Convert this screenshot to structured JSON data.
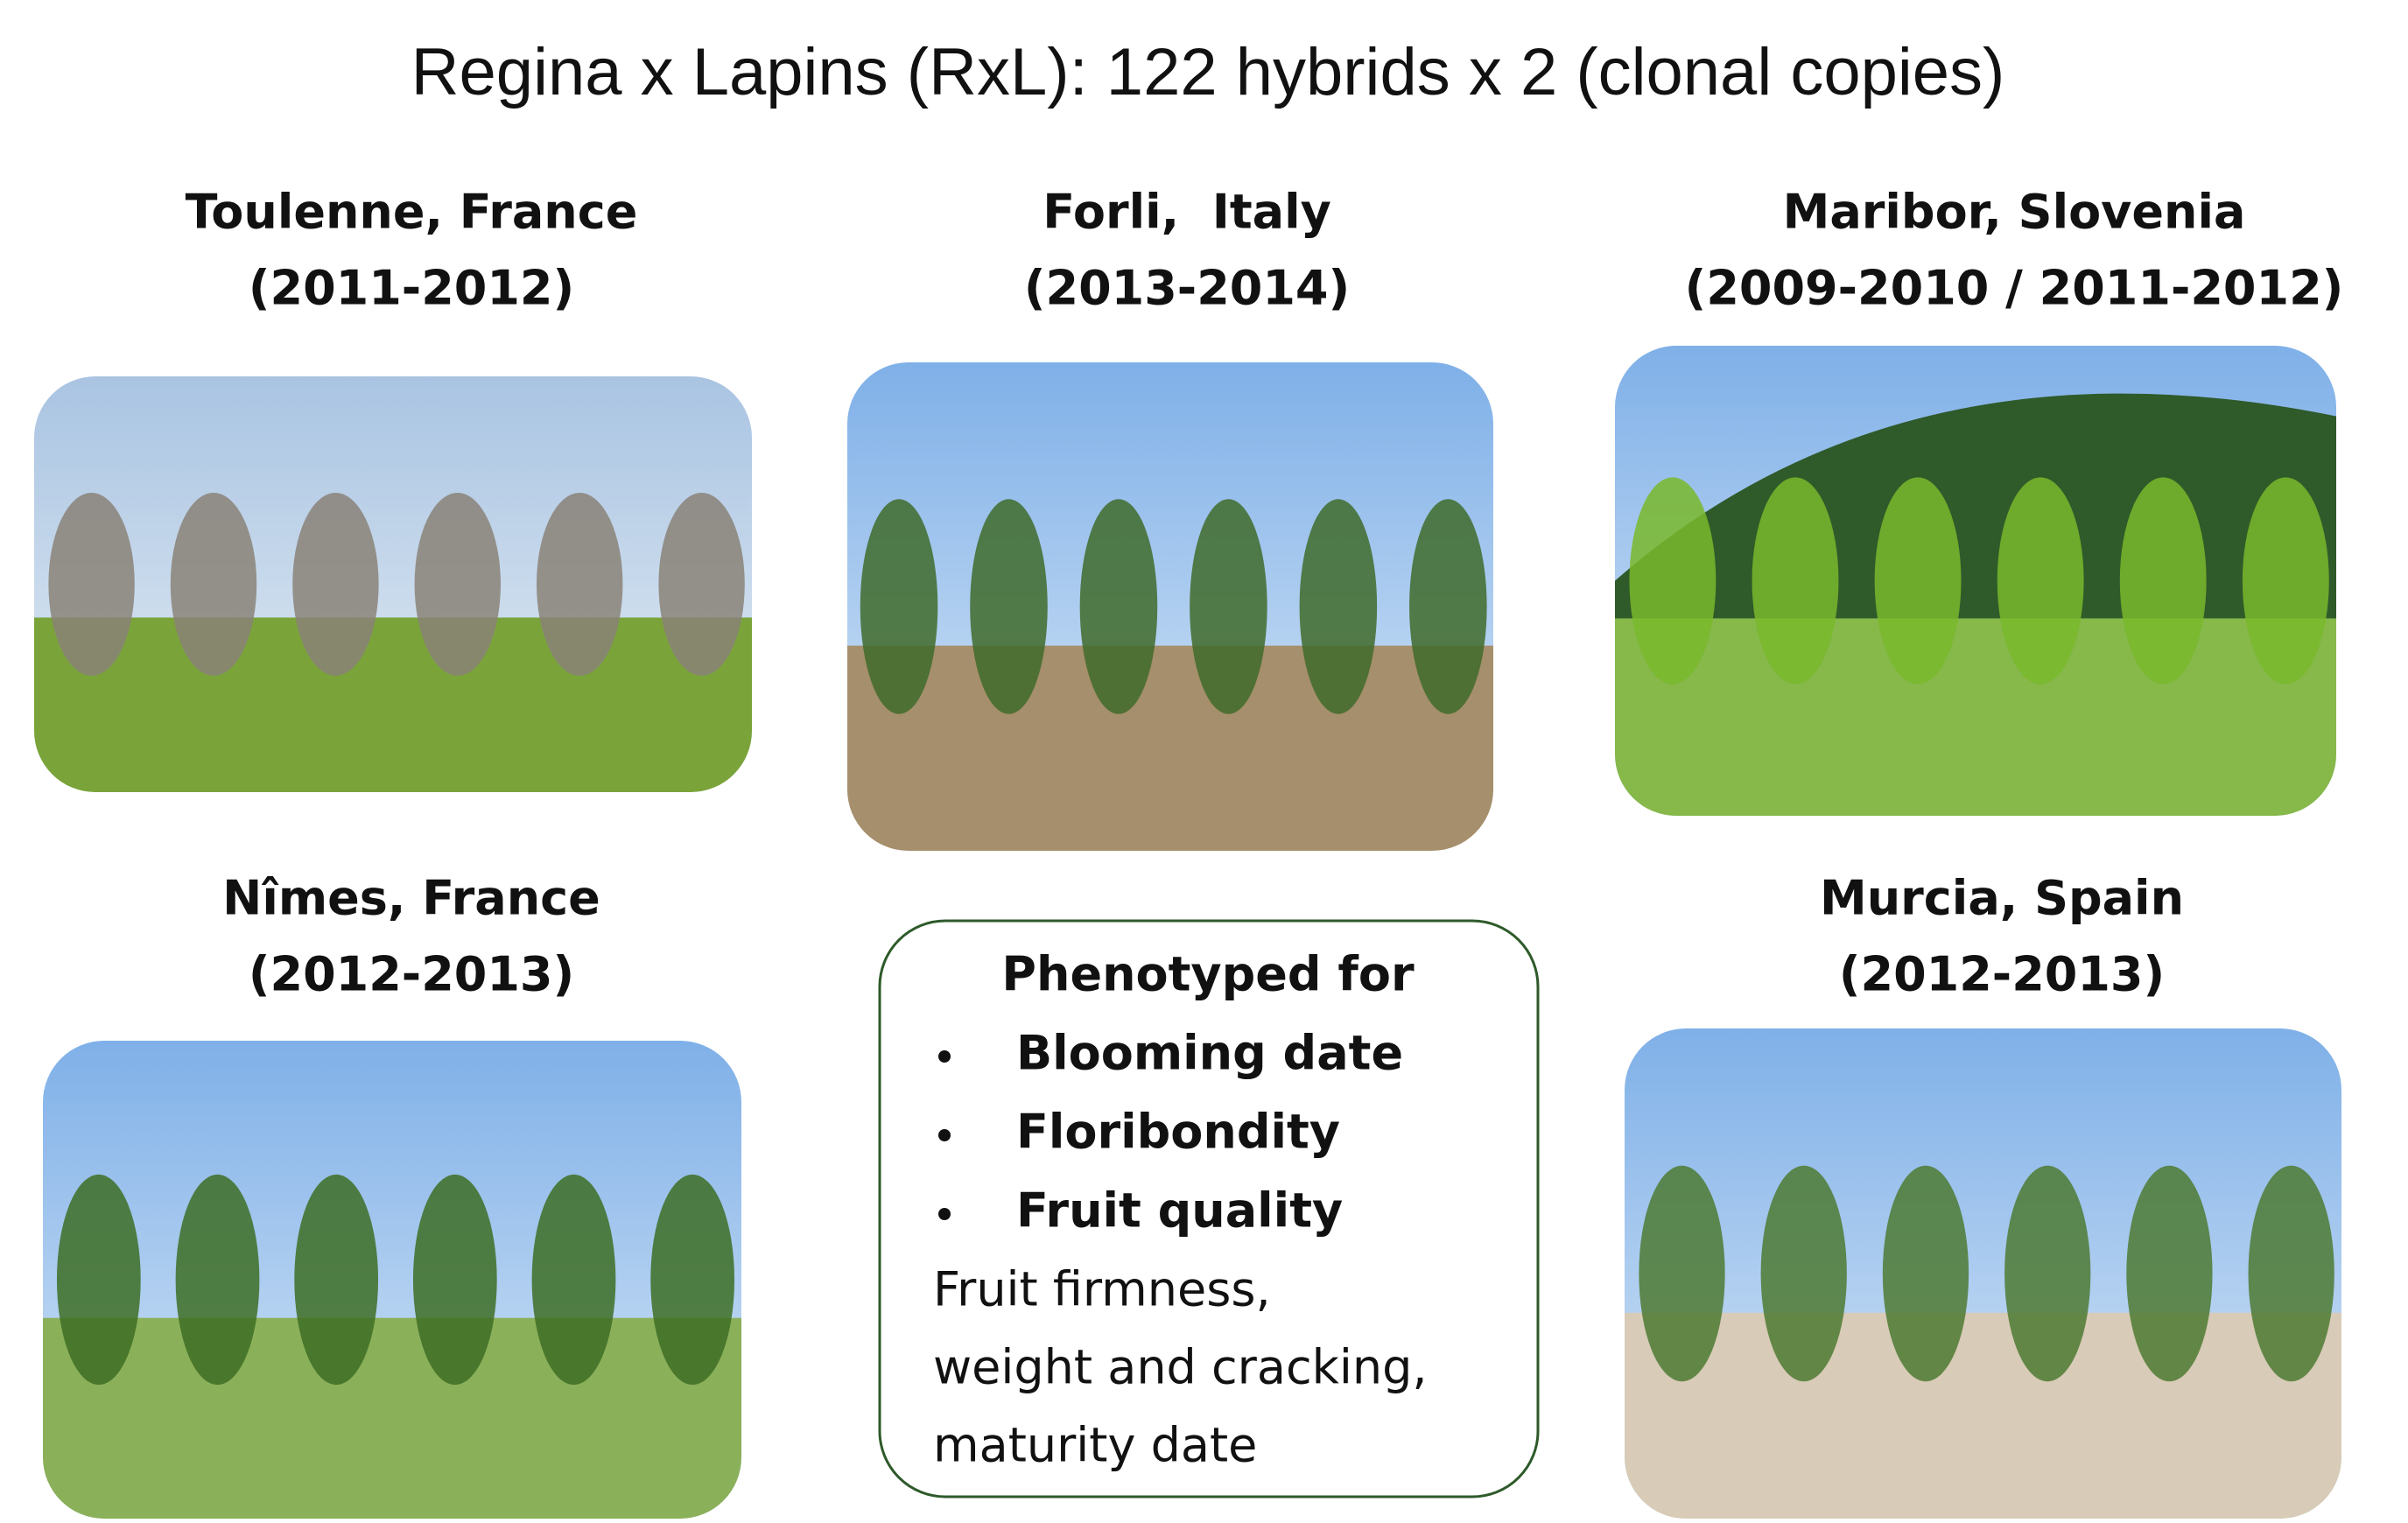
{
  "title": "Regina x Lapins (RxL): 122 hybrids x 2 (clonal copies)",
  "sites": [
    {
      "name": "Toulenne, France",
      "years": "(2011-2012)"
    },
    {
      "name": "Forli,  Italy",
      "years": "(2013-2014)"
    },
    {
      "name": "Maribor, Slovenia",
      "years": "(2009-2010 / 2011-2012)"
    },
    {
      "name": "Nîmes, France",
      "years": "(2012-2013)"
    },
    {
      "name": "Murcia, Spain",
      "years": "(2012-2013)"
    }
  ],
  "phenotypes": {
    "heading": "Phenotyped for",
    "bullets": [
      "Blooming date",
      "Floribondity",
      "Fruit quality"
    ],
    "details": [
      "Fruit firmness,",
      "weight and cracking,",
      "maturity date"
    ]
  }
}
